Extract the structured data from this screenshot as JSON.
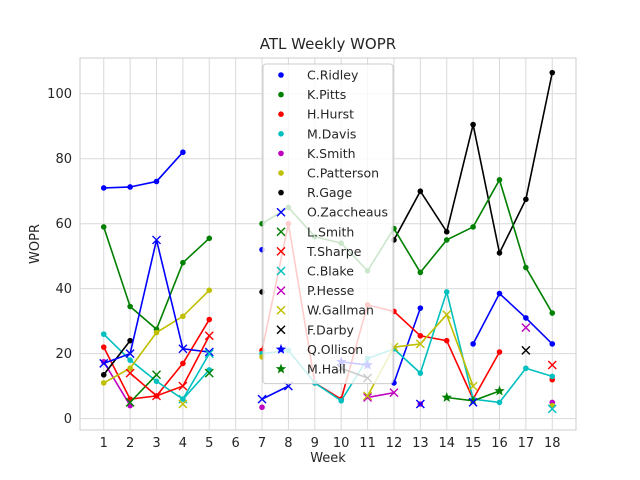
{
  "chart_data": {
    "type": "line",
    "title": "ATL Weekly WOPR",
    "xlabel": "Week",
    "ylabel": "WOPR",
    "xlim": [
      0.1,
      18.9
    ],
    "ylim": [
      -3.5,
      111
    ],
    "xticks": [
      1,
      2,
      3,
      4,
      5,
      6,
      7,
      8,
      9,
      10,
      11,
      12,
      13,
      14,
      15,
      16,
      17,
      18
    ],
    "yticks": [
      0,
      20,
      40,
      60,
      80,
      100
    ],
    "grid": true,
    "legend_position": "upper center",
    "series": [
      {
        "name": "C.Ridley",
        "color": "#0000ff",
        "marker": "dot",
        "points": [
          [
            1,
            71
          ],
          [
            2,
            71.3
          ],
          [
            3,
            73
          ],
          [
            4,
            82
          ]
        ]
      },
      {
        "name": "K.Pitts",
        "color": "#008000",
        "marker": "dot",
        "points": [
          [
            1,
            59
          ],
          [
            2,
            34.5
          ],
          [
            3,
            27.5
          ],
          [
            4,
            48
          ],
          [
            5,
            55.5
          ],
          [
            null,
            null
          ],
          [
            7,
            60
          ],
          [
            8,
            65
          ],
          [
            9,
            56
          ],
          [
            10,
            54
          ],
          [
            11,
            45.5
          ],
          [
            12,
            58.5
          ],
          [
            13,
            45
          ],
          [
            14,
            55
          ],
          [
            15,
            59
          ],
          [
            16,
            73.5
          ],
          [
            17,
            46.5
          ],
          [
            18,
            32.5
          ]
        ]
      },
      {
        "name": "H.Hurst",
        "color": "#ff0000",
        "marker": "dot",
        "points": [
          [
            1,
            22
          ],
          [
            2,
            6
          ],
          [
            3,
            7
          ],
          [
            4,
            17
          ],
          [
            5,
            30.5
          ],
          [
            null,
            null
          ],
          [
            7,
            21
          ],
          [
            8,
            60
          ],
          [
            9,
            11
          ],
          [
            10,
            6
          ],
          [
            11,
            35
          ],
          [
            12,
            33
          ],
          [
            13,
            25.5
          ],
          [
            14,
            24
          ],
          [
            15,
            6
          ],
          [
            16,
            20.5
          ],
          [
            null,
            null
          ],
          [
            18,
            12
          ]
        ]
      },
      {
        "name": "M.Davis",
        "color": "#00bfbf",
        "marker": "dot",
        "points": [
          [
            1,
            26
          ],
          [
            2,
            18
          ],
          [
            3,
            11.5
          ],
          [
            4,
            6
          ],
          [
            5,
            15
          ],
          [
            null,
            null
          ],
          [
            7,
            20
          ],
          [
            8,
            21
          ],
          [
            9,
            11
          ],
          [
            10,
            5.5
          ],
          [
            11,
            18.5
          ],
          [
            12,
            21.5
          ],
          [
            13,
            14
          ],
          [
            14,
            39
          ],
          [
            15,
            6
          ],
          [
            16,
            5
          ],
          [
            17,
            15.5
          ],
          [
            18,
            13
          ]
        ]
      },
      {
        "name": "K.Smith",
        "color": "#bf00bf",
        "marker": "dot",
        "points": [
          [
            1,
            17.5
          ],
          [
            2,
            4
          ]
        ]
      },
      {
        "name": "C.Patterson",
        "color": "#bfbf00",
        "marker": "dot",
        "points": [
          [
            1,
            11
          ],
          [
            2,
            15.5
          ],
          [
            3,
            26.5
          ],
          [
            4,
            31.5
          ],
          [
            5,
            39.5
          ]
        ]
      },
      {
        "name": "R.Gage",
        "color": "#000000",
        "marker": "dot",
        "points": [
          [
            1,
            13.5
          ],
          [
            2,
            24
          ]
        ]
      },
      {
        "name": "O.Zaccheaus",
        "color": "#0000ff",
        "marker": "x",
        "points": [
          [
            1,
            17
          ],
          [
            2,
            20
          ],
          [
            3,
            55
          ],
          [
            4,
            21.5
          ],
          [
            5,
            20.5
          ],
          [
            null,
            null
          ],
          [
            7,
            6
          ],
          [
            8,
            10
          ]
        ]
      },
      {
        "name": "L.Smith",
        "color": "#008000",
        "marker": "x",
        "points": [
          [
            2,
            5
          ],
          [
            3,
            13.5
          ]
        ]
      },
      {
        "name": "T.Sharpe",
        "color": "#ff0000",
        "marker": "x",
        "points": [
          [
            2,
            14
          ],
          [
            3,
            7
          ],
          [
            4,
            10
          ],
          [
            5,
            25.5
          ]
        ]
      },
      {
        "name": "C.Blake",
        "color": "#00bfbf",
        "marker": "x",
        "points": [
          [
            4,
            6
          ],
          [
            5,
            20
          ]
        ]
      },
      {
        "name": "P.Hesse",
        "color": "#bf00bf",
        "marker": "x",
        "points": [
          [
            11,
            6.5
          ],
          [
            12,
            8
          ]
        ]
      },
      {
        "name": "W.Gallman",
        "color": "#bfbf00",
        "marker": "x",
        "points": [
          [
            11,
            7
          ],
          [
            12,
            22
          ],
          [
            13,
            23
          ],
          [
            14,
            32
          ],
          [
            15,
            10
          ]
        ]
      },
      {
        "name": "F.Darby",
        "color": "#000000",
        "marker": "x",
        "points": [
          [
            10,
            15.5
          ],
          [
            11,
            12.5
          ]
        ]
      },
      {
        "name": "Q.Ollison",
        "color": "#0000ff",
        "marker": "star",
        "points": [
          [
            10,
            17.5
          ],
          [
            11,
            16.5
          ]
        ]
      },
      {
        "name": "M.Hall",
        "color": "#008000",
        "marker": "star",
        "points": [
          [
            14,
            6.5
          ],
          [
            15,
            5.5
          ],
          [
            16,
            8.5
          ]
        ]
      }
    ],
    "extra_lines": [
      {
        "color": "#000000",
        "points": [
          [
            12,
            55
          ],
          [
            13,
            70
          ],
          [
            14,
            57.5
          ],
          [
            15,
            90.5
          ],
          [
            16,
            51
          ],
          [
            17,
            67.5
          ],
          [
            18,
            106.5
          ]
        ]
      },
      {
        "color": "#0000ff",
        "points": [
          [
            12,
            11
          ],
          [
            13,
            34
          ],
          [
            null,
            null
          ],
          [
            15,
            23
          ],
          [
            16,
            38.5
          ],
          [
            17,
            31
          ],
          [
            18,
            23
          ]
        ]
      }
    ],
    "extra_markers": [
      {
        "color": "#0000ff",
        "marker": "dot",
        "points": [
          [
            7,
            52
          ]
        ]
      },
      {
        "color": "#000000",
        "marker": "dot",
        "points": [
          [
            7,
            39
          ]
        ]
      },
      {
        "color": "#bf00bf",
        "marker": "dot",
        "points": [
          [
            7,
            3.5
          ],
          [
            13,
            4.5
          ],
          [
            18,
            5
          ]
        ]
      },
      {
        "color": "#bfbf00",
        "marker": "dot",
        "points": [
          [
            7,
            19
          ],
          [
            18,
            4
          ]
        ]
      },
      {
        "color": "#bf00bf",
        "marker": "x",
        "points": [
          [
            17,
            28
          ]
        ]
      },
      {
        "color": "#000000",
        "marker": "x",
        "points": [
          [
            17,
            21
          ]
        ]
      },
      {
        "color": "#ff0000",
        "marker": "x",
        "points": [
          [
            18,
            16.5
          ]
        ]
      },
      {
        "color": "#00bfbf",
        "marker": "x",
        "points": [
          [
            18,
            3
          ]
        ]
      },
      {
        "color": "#bfbf00",
        "marker": "x",
        "points": [
          [
            4,
            4.5
          ]
        ]
      },
      {
        "color": "#008000",
        "marker": "x",
        "points": [
          [
            5,
            14
          ]
        ]
      },
      {
        "color": "#0000ff",
        "marker": "x",
        "points": [
          [
            13,
            4.5
          ],
          [
            15,
            5
          ]
        ]
      }
    ]
  }
}
